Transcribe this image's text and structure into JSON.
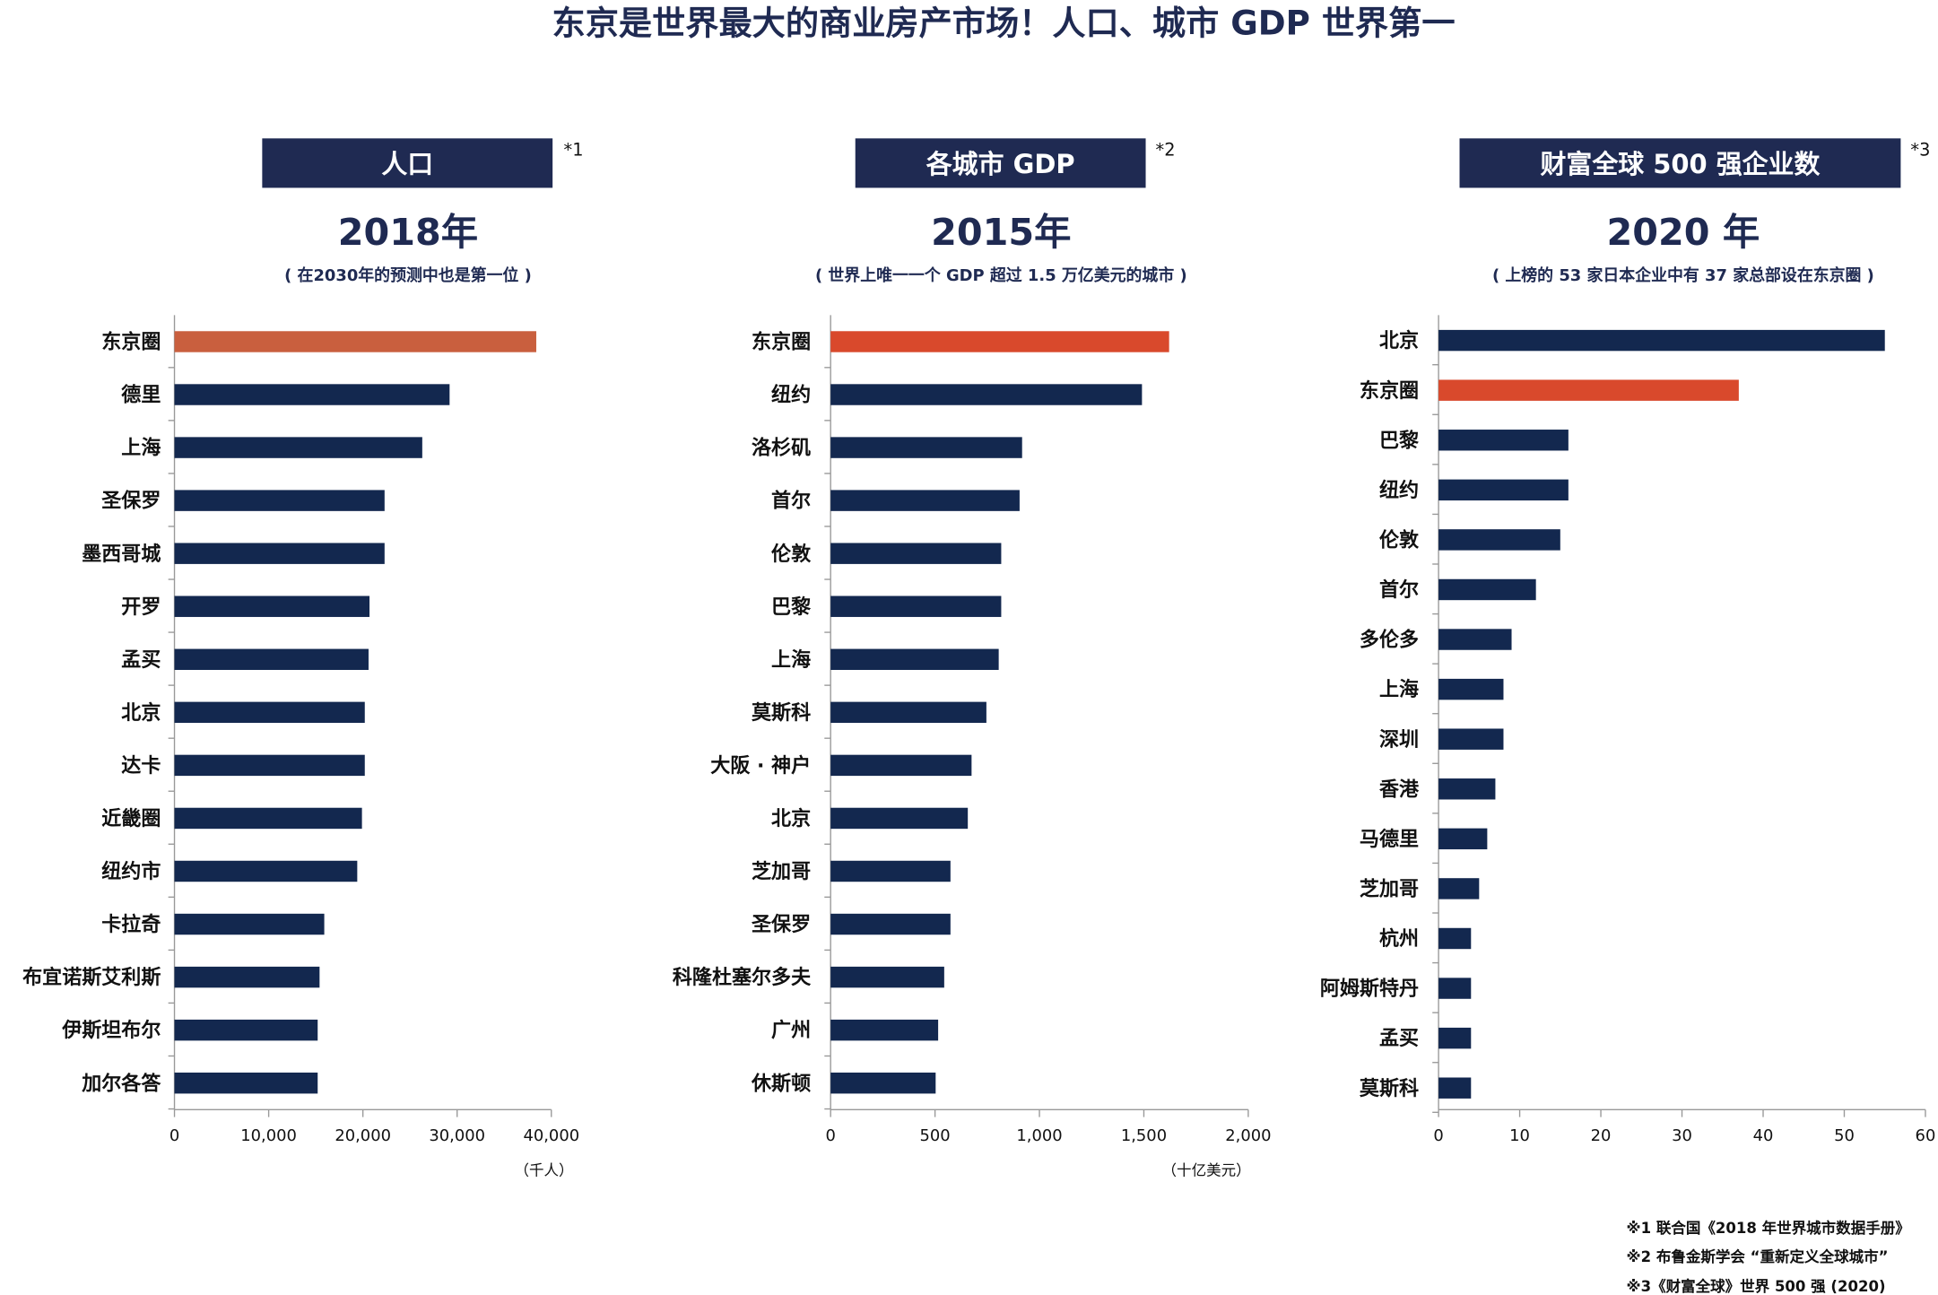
{
  "title": "东京是世界最大的商业房产市场！人口、城市 GDP 世界第一",
  "colors": {
    "navy": "#1f2a52",
    "bar": "#13284f",
    "highlight1": "#c95f3e",
    "highlight": "#d9492c"
  },
  "chart_data": [
    {
      "type": "bar",
      "orientation": "horizontal",
      "header": "人口",
      "note_mark": "*1",
      "title": "2018年",
      "subtitle": "( 在2030年的预测中也是第一位 )",
      "unit": "（千人）",
      "xlim": [
        0,
        40000
      ],
      "ticks": [
        "0",
        "10,000",
        "20,000",
        "30,000",
        "40,000"
      ],
      "tick_values": [
        0,
        10000,
        20000,
        30000,
        40000
      ],
      "highlight": "东京圈",
      "categories": [
        "东京圈",
        "德里",
        "上海",
        "圣保罗",
        "墨西哥城",
        "开罗",
        "孟买",
        "北京",
        "达卡",
        "近畿圈",
        "纽约市",
        "卡拉奇",
        "布宜诺斯艾利斯",
        "伊斯坦布尔",
        "加尔各答"
      ],
      "values": [
        38400,
        29200,
        26300,
        22300,
        22300,
        20700,
        20600,
        20200,
        20200,
        19900,
        19400,
        15900,
        15400,
        15200,
        15200
      ]
    },
    {
      "type": "bar",
      "orientation": "horizontal",
      "header": "各城市 GDP",
      "note_mark": "*2",
      "title": "2015年",
      "subtitle": "( 世界上唯一一个 GDP 超过 1.5 万亿美元的城市 )",
      "unit": "（十亿美元）",
      "xlim": [
        0,
        2000
      ],
      "ticks": [
        "0",
        "500",
        "1,000",
        "1,500",
        "2,000"
      ],
      "tick_values": [
        0,
        500,
        1000,
        1500,
        2000
      ],
      "highlight": "东京圈",
      "categories": [
        "东京圈",
        "纽约",
        "洛杉矶",
        "首尔",
        "伦敦",
        "巴黎",
        "上海",
        "莫斯科",
        "大阪 · 神户",
        "北京",
        "芝加哥",
        "圣保罗",
        "科隆杜塞尔多夫",
        "广州",
        "休斯顿"
      ],
      "values": [
        1621,
        1491,
        917,
        905,
        817,
        817,
        805,
        746,
        675,
        657,
        574,
        574,
        544,
        515,
        503
      ]
    },
    {
      "type": "bar",
      "orientation": "horizontal",
      "header": "财富全球 500 强企业数",
      "note_mark": "*3",
      "title": "2020 年",
      "subtitle": "( 上榜的 53 家日本企业中有 37 家总部设在东京圈 )",
      "unit": "",
      "xlim": [
        0,
        60
      ],
      "ticks": [
        "0",
        "10",
        "20",
        "30",
        "40",
        "50",
        "60"
      ],
      "tick_values": [
        0,
        10,
        20,
        30,
        40,
        50,
        60
      ],
      "highlight": "东京圈",
      "categories": [
        "北京",
        "东京圈",
        "巴黎",
        "纽约",
        "伦敦",
        "首尔",
        "多伦多",
        "上海",
        "深圳",
        "香港",
        "马德里",
        "芝加哥",
        "杭州",
        "阿姆斯特丹",
        "孟买",
        "莫斯科"
      ],
      "values": [
        55,
        37,
        16,
        16,
        15,
        12,
        9,
        8,
        8,
        7,
        6,
        5,
        4,
        4,
        4,
        4
      ]
    }
  ],
  "footnotes": [
    "※1 联合国《2018 年世界城市数据手册》",
    "※2 布鲁金斯学会 “重新定义全球城市”",
    "※3《财富全球》世界 500 强 (2020)"
  ]
}
